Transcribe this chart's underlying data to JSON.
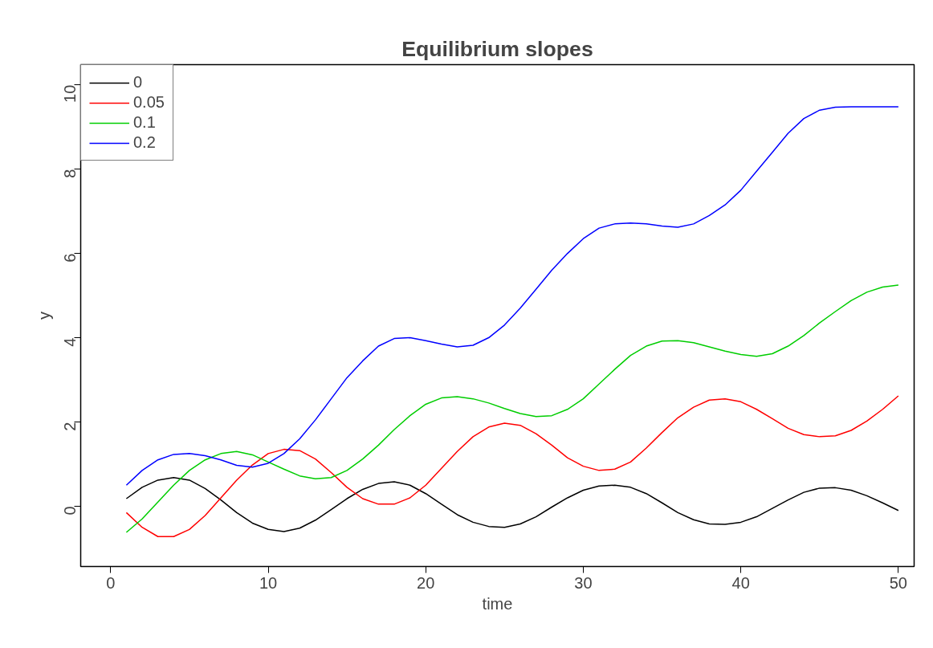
{
  "chart_data": {
    "type": "line",
    "title": "Equilibrium slopes",
    "xlabel": "time",
    "ylabel": "y",
    "x": [
      1,
      2,
      3,
      4,
      5,
      6,
      7,
      8,
      9,
      10,
      11,
      12,
      13,
      14,
      15,
      16,
      17,
      18,
      19,
      20,
      21,
      22,
      23,
      24,
      25,
      26,
      27,
      28,
      29,
      30,
      31,
      32,
      33,
      34,
      35,
      36,
      37,
      38,
      39,
      40,
      41,
      42,
      43,
      44,
      45,
      46,
      47,
      48,
      49,
      50
    ],
    "series": [
      {
        "name": "0",
        "color": "#000000",
        "values": [
          0.18,
          0.45,
          0.62,
          0.68,
          0.62,
          0.42,
          0.15,
          -0.15,
          -0.4,
          -0.55,
          -0.6,
          -0.52,
          -0.33,
          -0.08,
          0.18,
          0.4,
          0.54,
          0.58,
          0.5,
          0.3,
          0.05,
          -0.2,
          -0.38,
          -0.48,
          -0.5,
          -0.42,
          -0.25,
          -0.02,
          0.2,
          0.38,
          0.48,
          0.5,
          0.45,
          0.3,
          0.08,
          -0.15,
          -0.32,
          -0.42,
          -0.43,
          -0.38,
          -0.25,
          -0.05,
          0.15,
          0.33,
          0.43,
          0.44,
          0.38,
          0.25,
          0.08,
          -0.1
        ]
      },
      {
        "name": "0.05",
        "color": "#ff0000",
        "values": [
          -0.15,
          -0.5,
          -0.72,
          -0.72,
          -0.55,
          -0.22,
          0.2,
          0.62,
          0.98,
          1.25,
          1.35,
          1.32,
          1.12,
          0.8,
          0.45,
          0.18,
          0.05,
          0.05,
          0.2,
          0.5,
          0.9,
          1.3,
          1.65,
          1.88,
          1.97,
          1.92,
          1.72,
          1.45,
          1.15,
          0.95,
          0.85,
          0.88,
          1.05,
          1.38,
          1.75,
          2.1,
          2.35,
          2.52,
          2.55,
          2.48,
          2.3,
          2.08,
          1.85,
          1.7,
          1.65,
          1.67,
          1.8,
          2.02,
          2.3,
          2.62
        ]
      },
      {
        "name": "0.1",
        "color": "#00cd00",
        "values": [
          -0.62,
          -0.3,
          0.1,
          0.5,
          0.85,
          1.1,
          1.25,
          1.3,
          1.22,
          1.05,
          0.88,
          0.72,
          0.65,
          0.68,
          0.85,
          1.12,
          1.45,
          1.82,
          2.15,
          2.42,
          2.57,
          2.6,
          2.55,
          2.45,
          2.32,
          2.2,
          2.13,
          2.15,
          2.3,
          2.55,
          2.9,
          3.25,
          3.58,
          3.8,
          3.92,
          3.93,
          3.88,
          3.78,
          3.68,
          3.6,
          3.56,
          3.62,
          3.8,
          4.05,
          4.35,
          4.62,
          4.88,
          5.08,
          5.2,
          5.25
        ]
      },
      {
        "name": "0.2",
        "color": "#0000ff",
        "values": [
          0.5,
          0.85,
          1.1,
          1.23,
          1.25,
          1.2,
          1.1,
          0.97,
          0.93,
          1.02,
          1.25,
          1.6,
          2.05,
          2.55,
          3.05,
          3.45,
          3.8,
          3.98,
          4.0,
          3.93,
          3.85,
          3.78,
          3.82,
          4.0,
          4.3,
          4.7,
          5.15,
          5.6,
          6.0,
          6.35,
          6.6,
          6.7,
          6.72,
          6.7,
          6.65,
          6.62,
          6.7,
          6.9,
          7.15,
          7.5,
          7.95,
          8.4,
          8.85,
          9.2,
          9.4,
          9.47,
          9.48,
          9.48,
          9.48,
          9.48
        ]
      }
    ],
    "xlim": [
      -1.9,
      51
    ],
    "ylim": [
      -1.43,
      10.48
    ],
    "xticks": [
      0,
      10,
      20,
      30,
      40,
      50
    ],
    "yticks": [
      0,
      2,
      4,
      6,
      8,
      10
    ],
    "grid": false,
    "legend": "top left",
    "marker": "none",
    "line_style": "solid"
  }
}
